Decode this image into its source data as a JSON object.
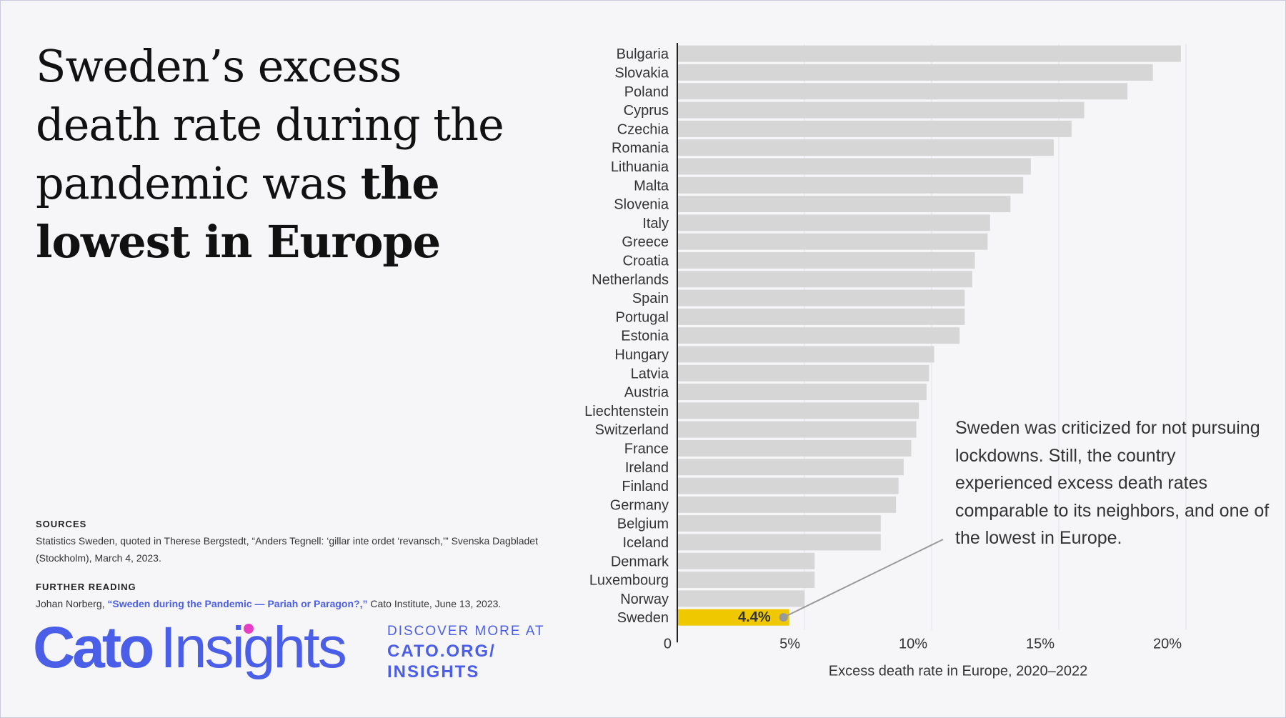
{
  "title": {
    "regular": "Sweden’s excess death rate during the pandemic was ",
    "bold": "the lowest in Europe"
  },
  "sources": {
    "heading": "SOURCES",
    "text": "Statistics Sweden, quoted in Therese Bergstedt, “Anders Tegnell: ‘gillar inte ordet ‘revansch,’” Svenska Dagbladet (Stockholm), March 4, 2023."
  },
  "further_reading": {
    "heading": "FURTHER READING",
    "author": "Johan Norberg, ",
    "link": "“Sweden during the Pandemic — Pariah or Paragon?,”",
    "rest": " Cato Institute, June 13, 2023."
  },
  "logo": {
    "cato": "Cato",
    "insights": "Insights",
    "discover": "DISCOVER MORE AT",
    "url_line1": "CATO.ORG/",
    "url_line2": "INSIGHTS"
  },
  "annotation": "Sweden was criticized for not pursuing lockdowns. Still, the country experienced excess death rates comparable to its neighbors, and one of the lowest in Europe.",
  "colors": {
    "bar": "#d6d6d6",
    "highlight": "#f0c800",
    "brand": "#4a5ee8",
    "accent_dot": "#e63fc4"
  },
  "chart_data": {
    "type": "bar",
    "orientation": "horizontal",
    "xlabel": "Excess death rate in Europe, 2020–2022",
    "xlim": [
      0,
      20
    ],
    "xticks": [
      "0",
      "5%",
      "10%",
      "15%",
      "20%"
    ],
    "grid": true,
    "highlight": "Sweden",
    "highlight_label": "4.4%",
    "categories": [
      "Bulgaria",
      "Slovakia",
      "Poland",
      "Cyprus",
      "Czechia",
      "Romania",
      "Lithuania",
      "Malta",
      "Slovenia",
      "Italy",
      "Greece",
      "Croatia",
      "Netherlands",
      "Spain",
      "Portugal",
      "Estonia",
      "Hungary",
      "Latvia",
      "Austria",
      "Liechtenstein",
      "Switzerland",
      "France",
      "Ireland",
      "Finland",
      "Germany",
      "Belgium",
      "Iceland",
      "Denmark",
      "Luxembourg",
      "Norway",
      "Sweden"
    ],
    "values": [
      19.8,
      18.7,
      17.7,
      16.0,
      15.5,
      14.8,
      13.9,
      13.6,
      13.1,
      12.3,
      12.2,
      11.7,
      11.6,
      11.3,
      11.3,
      11.1,
      10.1,
      9.9,
      9.8,
      9.5,
      9.4,
      9.2,
      8.9,
      8.7,
      8.6,
      8.0,
      8.0,
      5.4,
      5.4,
      5.0,
      4.4
    ]
  }
}
